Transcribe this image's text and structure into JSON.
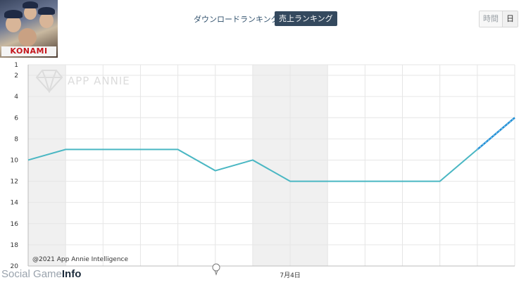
{
  "header": {
    "app_logo_text": "KONAMI",
    "tabs": [
      {
        "label": "ダウンロードランキング",
        "active": false
      },
      {
        "label": "売上ランキング",
        "active": true
      }
    ],
    "granularity": [
      {
        "label": "時間",
        "active": false
      },
      {
        "label": "日",
        "active": true
      }
    ]
  },
  "watermark": "APP ANNIE",
  "copyright": "@2021 App Annie Intelligence",
  "source_credit": {
    "part1": "Social Game",
    "part2": "Info"
  },
  "colors": {
    "line": "#4ab7c3",
    "line_recent": "#1f8fd6",
    "shade": "#f0f0f0",
    "grid": "#e6e6e6"
  },
  "chart_data": {
    "type": "line",
    "y_axis": {
      "inverted": true,
      "range": [
        1,
        20
      ],
      "ticks": [
        1,
        2,
        4,
        6,
        8,
        10,
        12,
        14,
        16,
        18,
        20
      ]
    },
    "x_labels": [
      {
        "index": 7,
        "label": "7月4日"
      }
    ],
    "points": [
      10,
      9,
      9,
      9,
      9,
      11,
      10,
      12,
      12,
      12,
      12,
      12,
      9,
      6
    ],
    "recent_from_index": 12,
    "shaded_columns": [
      [
        0,
        1
      ],
      [
        6,
        8
      ]
    ],
    "grid": true
  }
}
